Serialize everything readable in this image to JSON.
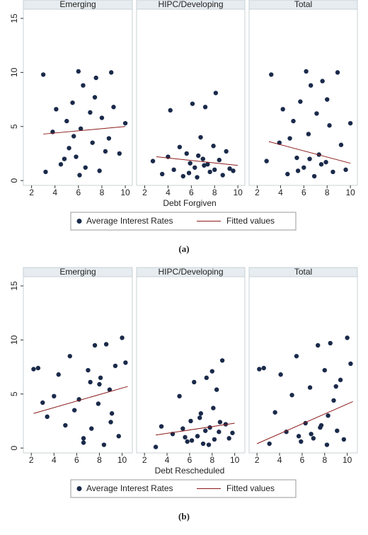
{
  "chart_data": [
    {
      "type": "scatter",
      "caption": "(a)",
      "xlabel": "Debt Forgiven",
      "xlim": [
        1.3,
        10.6
      ],
      "xticks": [
        2,
        4,
        6,
        8,
        10
      ],
      "ylim": [
        -0.45,
        15.85
      ],
      "yticks": [
        0,
        5,
        10,
        15
      ],
      "legend": [
        {
          "name": "Average Interest Rates",
          "color": "#1a2a4a"
        },
        {
          "name": "Fitted values",
          "color": "#8b1a1a"
        }
      ],
      "panels": [
        {
          "title": "Emerging",
          "x": [
            3,
            3.2,
            3.8,
            4.1,
            4.5,
            5,
            5.2,
            5.5,
            5.8,
            6,
            6.2,
            6.4,
            6.6,
            7,
            7.2,
            7.5,
            7.8,
            8,
            8.3,
            8.8,
            9,
            9.5,
            10,
            6.1,
            7.4,
            5.6,
            8.6,
            4.8
          ],
          "y": [
            9.8,
            0.8,
            4.5,
            6.6,
            1.5,
            5.5,
            3,
            7.2,
            2.2,
            10.1,
            4.8,
            8.8,
            1.2,
            6.3,
            3.5,
            9.5,
            0.9,
            5.8,
            2.7,
            10,
            6.8,
            2.5,
            5.3,
            0.5,
            7.7,
            4.1,
            3.9,
            2.0
          ],
          "fit_x": [
            3,
            10
          ],
          "fit_y": [
            4.3,
            5.0
          ]
        },
        {
          "title": "HIPC/Developing",
          "x": [
            2.7,
            3.5,
            4,
            4.2,
            4.5,
            5,
            5.3,
            5.6,
            5.9,
            6.1,
            6.3,
            6.5,
            6.8,
            7,
            7.2,
            7.4,
            7.6,
            7.9,
            8.1,
            8.4,
            8.7,
            9,
            9.3,
            9.6,
            6.6,
            7.1,
            5.8,
            8
          ],
          "y": [
            1.8,
            0.6,
            2.2,
            6.5,
            1.0,
            3.1,
            0.4,
            2.5,
            1.6,
            7.1,
            1.2,
            0.3,
            4.0,
            2.0,
            6.8,
            1.5,
            0.8,
            3.2,
            8.1,
            1.9,
            0.5,
            2.7,
            1.1,
            0.9,
            2.3,
            1.4,
            0.7,
            1.0
          ],
          "fit_x": [
            3,
            10
          ],
          "fit_y": [
            2.2,
            1.4
          ]
        },
        {
          "title": "Total",
          "x": [
            2.8,
            3.2,
            3.9,
            4.2,
            4.6,
            5.1,
            5.4,
            5.7,
            6,
            6.2,
            6.4,
            6.6,
            6.9,
            7.1,
            7.3,
            7.6,
            7.9,
            8.2,
            8.5,
            8.9,
            9.2,
            9.6,
            10,
            6.5,
            7.5,
            5.5,
            8,
            4.8
          ],
          "y": [
            1.8,
            9.8,
            3.5,
            6.6,
            0.6,
            5.5,
            2.1,
            7.3,
            1.2,
            10.1,
            4.3,
            8.8,
            0.4,
            6.2,
            2.4,
            9.2,
            1.7,
            5.1,
            0.8,
            10,
            3.3,
            1.0,
            5.3,
            2.0,
            1.5,
            0.9,
            7.5,
            3.9
          ],
          "fit_x": [
            3,
            10
          ],
          "fit_y": [
            3.6,
            1.6
          ]
        }
      ]
    },
    {
      "type": "scatter",
      "caption": "(b)",
      "xlabel": "Debt Rescheduled",
      "xlim": [
        1.3,
        10.9
      ],
      "xticks": [
        2,
        4,
        6,
        8,
        10
      ],
      "ylim": [
        -0.45,
        15.85
      ],
      "yticks": [
        0,
        5,
        10,
        15
      ],
      "legend": [
        {
          "name": "Average Interest Rates",
          "color": "#1a2a4a"
        },
        {
          "name": "Fitted values",
          "color": "#8b1a1a"
        }
      ],
      "panels": [
        {
          "title": "Emerging",
          "x": [
            2.2,
            2.6,
            3,
            3.4,
            4,
            4.4,
            5,
            5.4,
            5.8,
            6.2,
            6.6,
            7,
            7.3,
            7.6,
            7.9,
            8.1,
            8.4,
            8.6,
            8.9,
            9.1,
            9.4,
            9.7,
            10,
            10.3,
            8,
            9,
            7.2,
            6.6
          ],
          "y": [
            7.3,
            7.4,
            4.2,
            2.9,
            4.8,
            6.8,
            2.1,
            8.5,
            3.5,
            4.5,
            0.5,
            7.2,
            1.8,
            9.5,
            4.1,
            6.5,
            0.3,
            9.6,
            5.4,
            3.2,
            7.6,
            1.1,
            10.2,
            7.9,
            5.9,
            2.4,
            6.1,
            0.9
          ],
          "fit_x": [
            2.2,
            10.5
          ],
          "fit_y": [
            3.2,
            5.7
          ]
        },
        {
          "title": "HIPC/Developing",
          "x": [
            3,
            3.5,
            4.5,
            5.1,
            5.4,
            5.8,
            6.1,
            6.4,
            6.7,
            7,
            7.2,
            7.5,
            7.8,
            8,
            8.2,
            8.4,
            8.6,
            8.9,
            9.2,
            9.5,
            9.8,
            6.9,
            7.7,
            8.1,
            5.6,
            8.7,
            7.4,
            6.2
          ],
          "y": [
            0.1,
            2.0,
            1.3,
            4.8,
            1.8,
            0.6,
            2.5,
            6.1,
            1.1,
            3.2,
            0.4,
            6.5,
            1.9,
            7.1,
            0.8,
            5.4,
            1.5,
            8.1,
            2.2,
            0.9,
            1.4,
            2.8,
            0.3,
            3.7,
            1.0,
            2.4,
            1.6,
            0.7
          ],
          "fit_x": [
            3,
            10
          ],
          "fit_y": [
            1.2,
            2.3
          ]
        },
        {
          "title": "Total",
          "x": [
            2.2,
            2.6,
            3.1,
            3.6,
            4.1,
            4.6,
            5.1,
            5.5,
            5.9,
            6.3,
            6.7,
            7,
            7.4,
            7.7,
            8,
            8.2,
            8.5,
            8.8,
            9.1,
            9.4,
            9.7,
            10,
            10.3,
            6.8,
            8.3,
            7.6,
            9,
            5.7
          ],
          "y": [
            7.3,
            7.4,
            0.4,
            3.3,
            6.8,
            1.5,
            4.9,
            8.5,
            0.6,
            2.3,
            5.6,
            0.9,
            9.5,
            2.1,
            7.2,
            0.3,
            9.7,
            4.4,
            1.6,
            6.3,
            0.8,
            10.2,
            7.8,
            1.3,
            3.0,
            1.9,
            5.7,
            1.1
          ],
          "fit_x": [
            2,
            10.5
          ],
          "fit_y": [
            0.4,
            4.3
          ]
        }
      ]
    }
  ]
}
